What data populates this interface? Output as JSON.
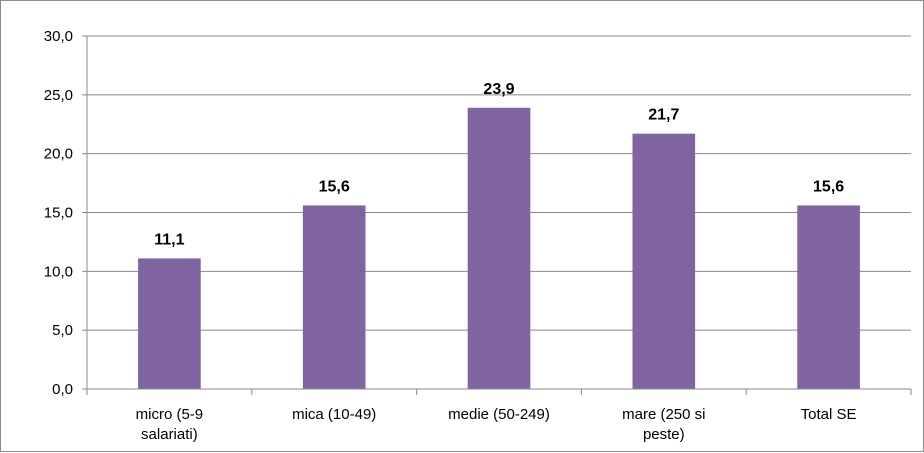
{
  "chart_data": {
    "type": "bar",
    "categories": [
      [
        "micro (5-9",
        "salariati)"
      ],
      [
        "mica (10-49)"
      ],
      [
        "medie (50-249)"
      ],
      [
        "mare (250 si",
        "peste)"
      ],
      [
        "Total SE"
      ]
    ],
    "values": [
      11.1,
      15.6,
      23.9,
      21.7,
      15.6
    ],
    "data_labels": [
      "11,1",
      "15,6",
      "23,9",
      "21,7",
      "15,6"
    ],
    "yticks": [
      0,
      5,
      10,
      15,
      20,
      25,
      30
    ],
    "ytick_labels": [
      "0,0",
      "5,0",
      "10,0",
      "15,0",
      "20,0",
      "25,0",
      "30,0"
    ],
    "ylim": [
      0,
      30
    ],
    "grid": true,
    "legend": "none",
    "title": "",
    "xlabel": "",
    "ylabel": "",
    "colors": {
      "bar": "#8064a2",
      "grid": "#888888",
      "axis": "#888888"
    }
  }
}
